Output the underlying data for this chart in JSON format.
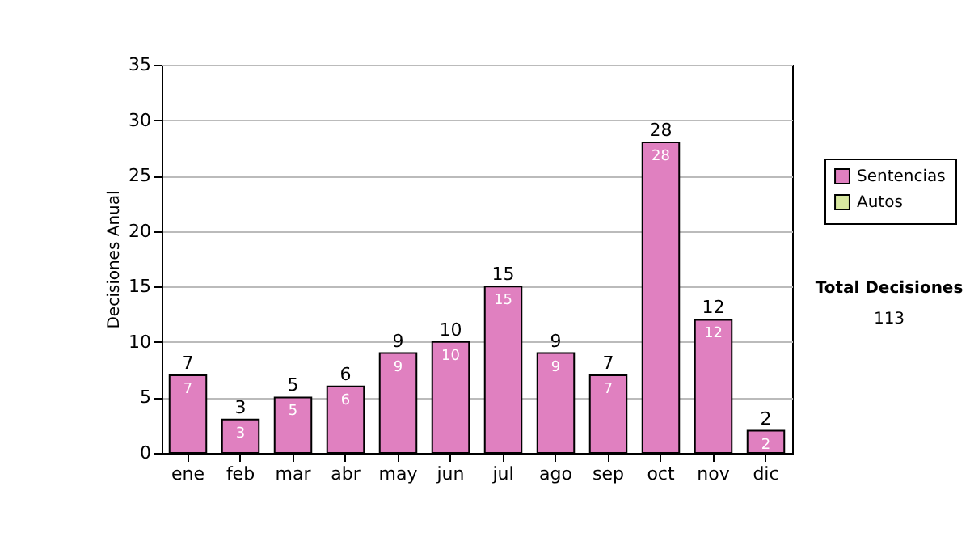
{
  "chart_data": {
    "type": "bar",
    "ylabel": "Decisiones Anual",
    "categories": [
      "ene",
      "feb",
      "mar",
      "abr",
      "may",
      "jun",
      "jul",
      "ago",
      "sep",
      "oct",
      "nov",
      "dic"
    ],
    "series": [
      {
        "name": "Sentencias",
        "color": "#e080c0",
        "values": [
          7,
          3,
          5,
          6,
          9,
          10,
          15,
          9,
          7,
          28,
          12,
          2
        ],
        "value_labels": [
          "7",
          "3",
          "5",
          "6",
          "9",
          "10",
          "15",
          "9",
          "7",
          "28",
          "12",
          "2"
        ]
      },
      {
        "name": "Autos",
        "color": "#d8e8a0",
        "values": [
          0,
          0,
          0,
          0,
          0,
          0,
          0,
          0,
          0,
          0,
          0,
          0
        ]
      }
    ],
    "totals": [
      "7",
      "3",
      "5",
      "6",
      "9",
      "10",
      "15",
      "9",
      "7",
      "28",
      "12",
      "2"
    ],
    "ylim": [
      0,
      35
    ],
    "yticks": [
      0,
      5,
      10,
      15,
      20,
      25,
      30,
      35
    ],
    "grid": "y",
    "legend": "right",
    "annotations": [
      "Total Decisiones",
      "113"
    ]
  }
}
